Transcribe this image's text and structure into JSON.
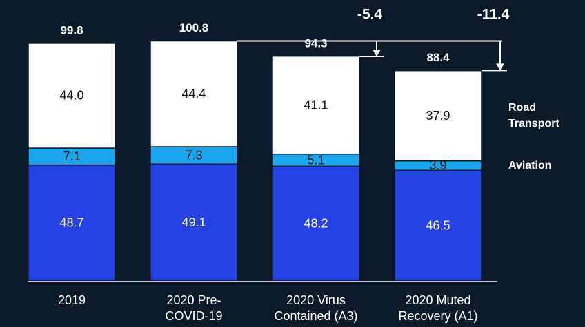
{
  "chart_data": {
    "type": "stacked_bar",
    "categories": [
      "2019",
      "2020 Pre-COVID-19",
      "2020 Virus Contained (A3)",
      "2020 Muted Recovery (A1)"
    ],
    "series": [
      {
        "color": "#2441e3",
        "values": [
          48.7,
          49.1,
          48.2,
          46.5
        ]
      },
      {
        "name": "Aviation",
        "color": "#1aa6ee",
        "values": [
          7.1,
          7.3,
          5.1,
          3.9
        ]
      },
      {
        "name": "Road Transport",
        "color": "#ffffff",
        "values": [
          44.0,
          44.4,
          41.1,
          37.9
        ],
        "value_labels": [
          "44.0",
          "44.4",
          "41.1",
          "37.9"
        ]
      }
    ],
    "totals": [
      99.8,
      100.8,
      94.3,
      88.4
    ],
    "annotations": [
      "-5.4",
      "-11.4"
    ],
    "ylim": [
      0,
      118
    ]
  }
}
